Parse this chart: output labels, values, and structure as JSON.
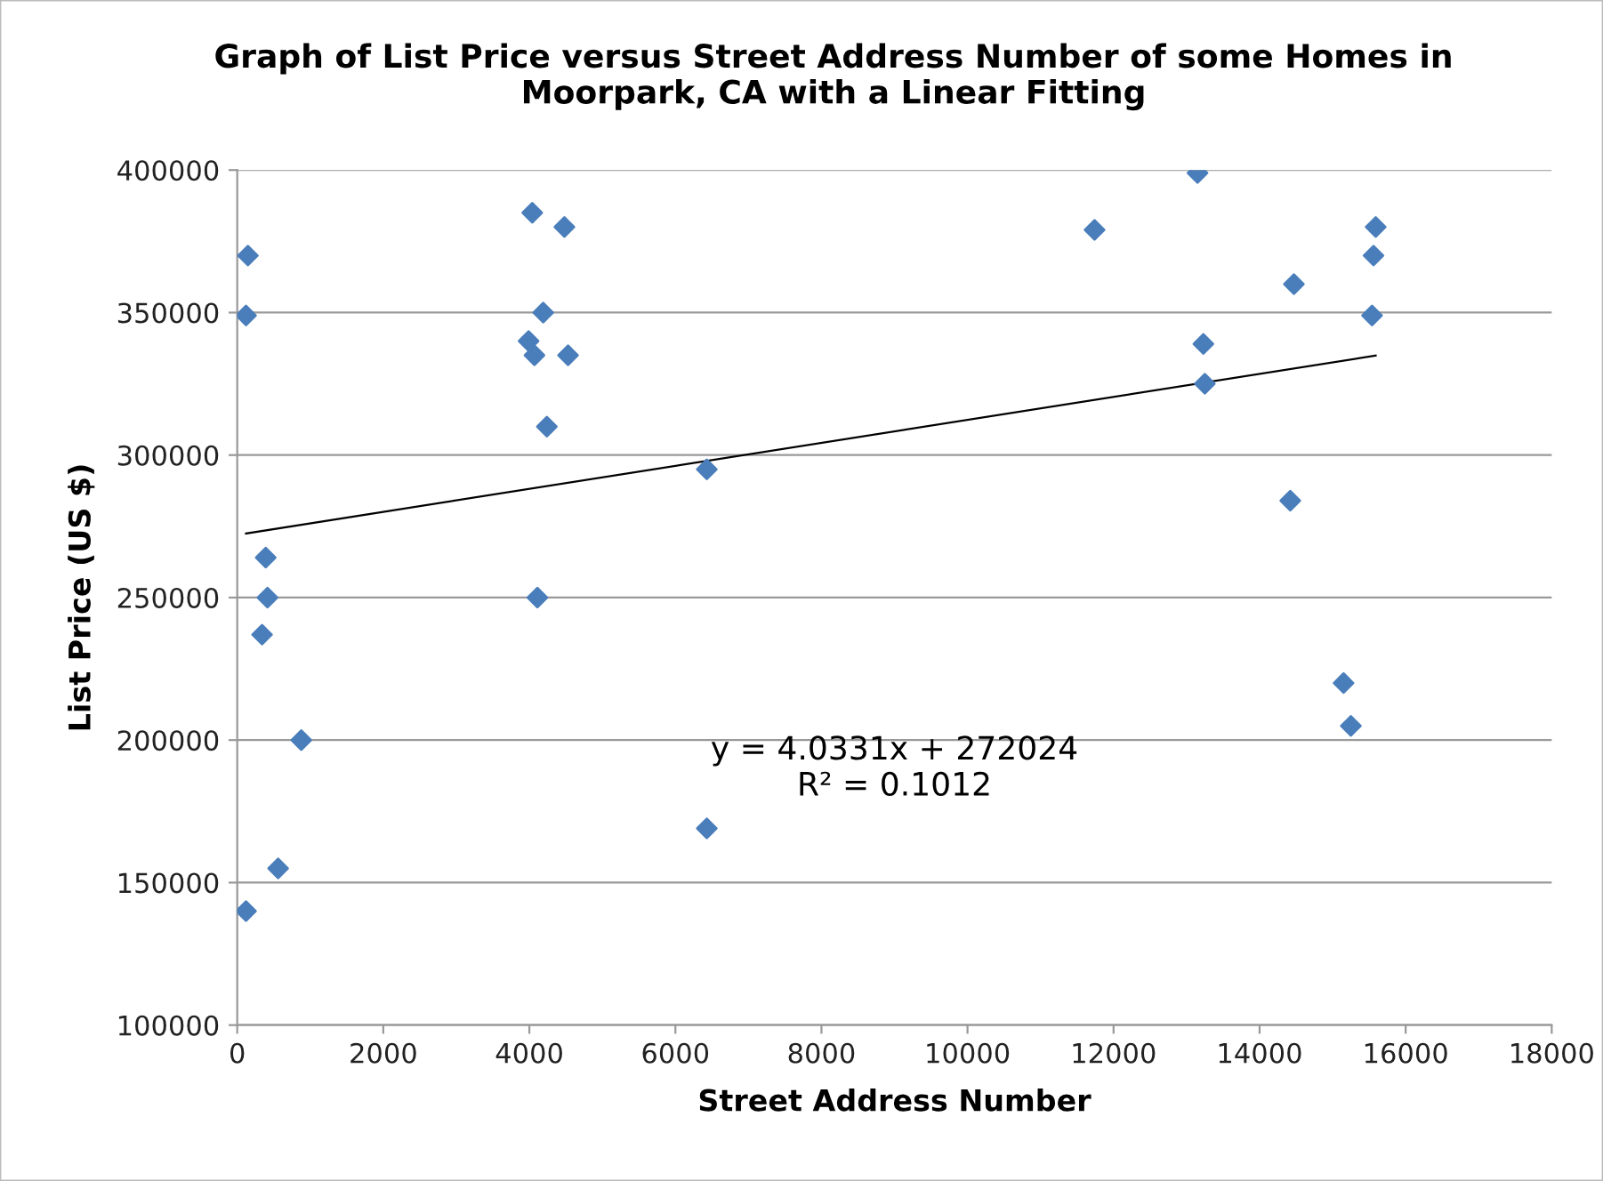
{
  "chart_data": {
    "type": "scatter",
    "title": "Graph of List Price versus Street Address Number of some Homes in\nMoorpark, CA with a Linear Fitting",
    "xlabel": "Street Address Number",
    "ylabel": "List Price (US $)",
    "series": [
      {
        "color": "#4a7ebb",
        "marker": "diamond",
        "x": [
          146,
          120,
          390,
          414,
          340,
          877,
          560,
          120,
          4040,
          4480,
          4190,
          3990,
          4070,
          4530,
          4240,
          4110,
          6430,
          6430,
          11740,
          13150,
          13230,
          13250,
          14470,
          14420,
          15150,
          15250,
          15590,
          15560,
          15540
        ],
        "values": [
          370000,
          349000,
          264000,
          250000,
          237000,
          200000,
          155000,
          140000,
          385000,
          380000,
          350000,
          340000,
          335000,
          335000,
          310000,
          250000,
          295000,
          169000,
          379000,
          399000,
          339000,
          325000,
          360000,
          284000,
          220000,
          205000,
          380000,
          370000,
          349000
        ]
      },
      {
        "type": "line",
        "color": "#000000",
        "marker": "none",
        "line_style": "solid",
        "x": [
          120,
          15590
        ],
        "values": [
          272500,
          334900
        ]
      }
    ],
    "annotations": [
      "y = 4.0331x + 272024\nR² = 0.1012"
    ],
    "xlim": [
      0,
      18000
    ],
    "xticks": [
      0,
      2000,
      4000,
      6000,
      8000,
      10000,
      12000,
      14000,
      16000,
      18000
    ],
    "ylim": [
      100000,
      400000
    ],
    "yticks": [
      100000,
      150000,
      200000,
      250000,
      300000,
      350000,
      400000
    ],
    "grid": "y",
    "legend": false
  }
}
